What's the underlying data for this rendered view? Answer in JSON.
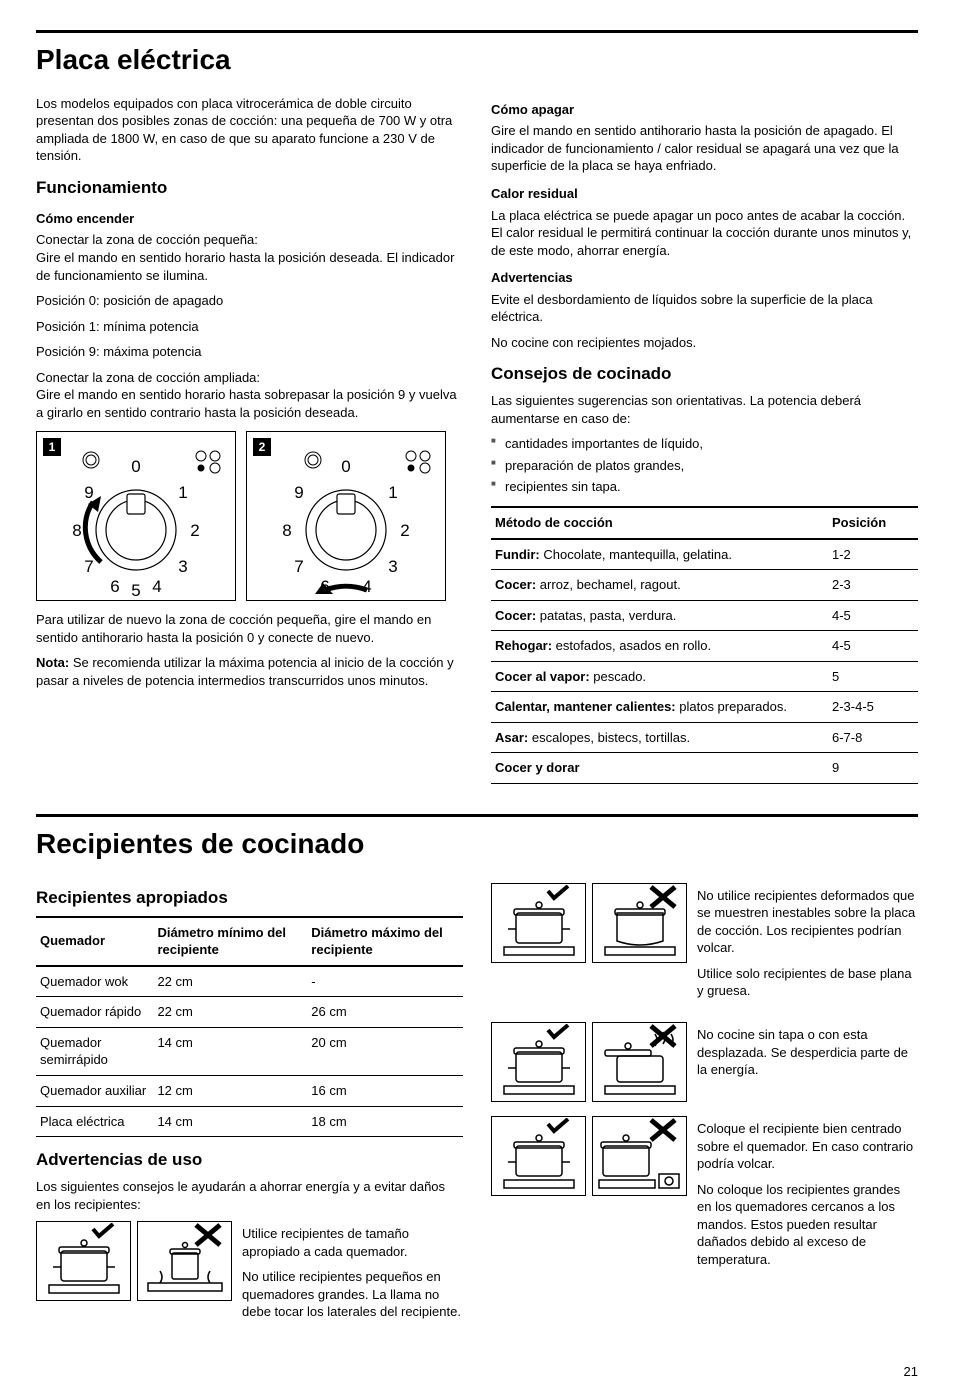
{
  "page_number": "21",
  "section1": {
    "title": "Placa eléctrica",
    "intro": "Los modelos equipados con placa vitrocerámica de doble circuito presentan dos posibles zonas de cocción: una pequeña de 700 W y otra ampliada de 1800 W, en caso de que su aparato funcione a 230 V de tensión.",
    "h_func": "Funcionamiento",
    "h_on": "Cómo encender",
    "on_p1": "Conectar la zona de cocción pequeña:",
    "on_p2": "Gire el mando en sentido horario hasta la posición deseada. El indicador de funcionamiento se ilumina.",
    "pos0": "Posición 0: posición de apagado",
    "pos1": "Posición 1: mínima potencia",
    "pos9": "Posición 9: máxima potencia",
    "amp_p1": "Conectar la zona de cocción ampliada:",
    "amp_p2": "Gire el mando en sentido horario hasta sobrepasar la posición 9 y vuelva a girarlo en sentido contrario hasta la posición deseada.",
    "dial1": "1",
    "dial2": "2",
    "after_dial": "Para utilizar de nuevo la zona de cocción pequeña, gire el mando en sentido antihorario hasta la posición 0 y conecte de nuevo.",
    "nota_label": "Nota: ",
    "nota": "Se recomienda utilizar la máxima potencia al inicio de la cocción y pasar a niveles de potencia intermedios transcurridos unos minutos.",
    "h_off": "Cómo apagar",
    "off_p": "Gire el mando en sentido antihorario hasta la posición de apagado. El indicador de funcionamiento / calor residual se apagará una vez que la superficie de la placa se haya enfriado.",
    "h_res": "Calor residual",
    "res_p": "La placa eléctrica se puede apagar un poco antes de acabar la cocción. El calor residual le permitirá continuar la cocción durante unos minutos y, de este modo, ahorrar energía.",
    "h_adv": "Advertencias",
    "adv_p1": "Evite el desbordamiento de líquidos sobre la superficie de la placa eléctrica.",
    "adv_p2": "No cocine con recipientes mojados.",
    "h_cons": "Consejos de cocinado",
    "cons_p": "Las siguientes sugerencias son orientativas. La potencia deberá aumentarse en caso de:",
    "bullets": [
      "cantidades importantes de líquido,",
      "preparación de platos grandes,",
      "recipientes sin tapa."
    ],
    "table": {
      "h1": "Método de cocción",
      "h2": "Posición",
      "rows": [
        {
          "b": "Fundir:",
          "t": " Chocolate, mantequilla, gelatina.",
          "p": "1-2"
        },
        {
          "b": "Cocer:",
          "t": " arroz, bechamel, ragout.",
          "p": "2-3"
        },
        {
          "b": "Cocer:",
          "t": " patatas, pasta, verdura.",
          "p": "4-5"
        },
        {
          "b": "Rehogar:",
          "t": " estofados, asados en rollo.",
          "p": "4-5"
        },
        {
          "b": "Cocer al vapor:",
          "t": " pescado.",
          "p": "5"
        },
        {
          "b": "Calentar, mantener calientes:",
          "t": " platos preparados.",
          "p": "2-3-4-5"
        },
        {
          "b": "Asar:",
          "t": " escalopes, bistecs, tortillas.",
          "p": "6-7-8"
        },
        {
          "b": "Cocer y dorar",
          "t": "",
          "p": "9"
        }
      ]
    }
  },
  "section2": {
    "title": "Recipientes de cocinado",
    "h_prop": "Recipientes apropiados",
    "table": {
      "h1": "Quemador",
      "h2": "Diámetro mínimo del recipiente",
      "h3": "Diámetro máximo del recipiente",
      "rows": [
        [
          "Quemador wok",
          "22 cm",
          "-"
        ],
        [
          "Quemador rápido",
          "22 cm",
          "26 cm"
        ],
        [
          "Quemador semirrápido",
          "14 cm",
          "20 cm"
        ],
        [
          "Quemador auxiliar",
          "12 cm",
          "16 cm"
        ],
        [
          "Placa eléctrica",
          "14 cm",
          "18 cm"
        ]
      ]
    },
    "h_adv": "Advertencias de uso",
    "adv_p": "Los siguientes consejos le ayudarán a ahorrar energía y a evitar daños en los recipientes:",
    "tip1a": "Utilice recipientes de tamaño apropiado a cada quemador.",
    "tip1b": "No utilice recipientes pequeños en quemadores grandes. La llama no debe tocar los laterales del recipiente.",
    "tip2a": "No utilice recipientes deformados que se muestren inestables sobre la placa de cocción. Los recipientes podrían volcar.",
    "tip2b": "Utilice solo recipientes de base plana y gruesa.",
    "tip3": "No cocine sin tapa o con esta desplazada. Se desperdicia parte de la energía.",
    "tip4a": "Coloque el recipiente bien centrado sobre el quemador. En caso contrario podría volcar.",
    "tip4b": "No coloque los recipientes grandes en los quemadores cercanos a los mandos. Estos pueden resultar dañados debido al exceso de temperatura."
  }
}
